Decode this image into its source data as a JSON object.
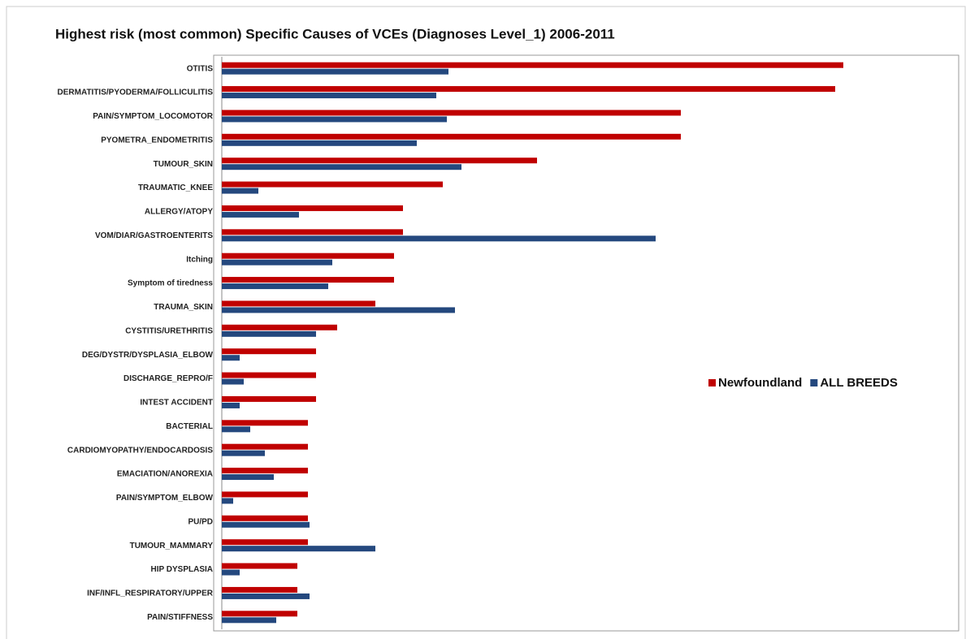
{
  "chart_data": {
    "type": "hbar",
    "title": "Highest risk (most common) Specific Causes of VCEs (Diagnoses Level_1) 2006-2011",
    "categories": [
      "OTITIS",
      "DERMATITIS/PYODERMA/FOLLICULITIS",
      "PAIN/SYMPTOM_LOCOMOTOR",
      "PYOMETRA_ENDOMETRITIS",
      "TUMOUR_SKIN",
      "TRAUMATIC_KNEE",
      "ALLERGY/ATOPY",
      "VOM/DIAR/GASTROENTERITS",
      "Itching",
      "Symptom of tiredness",
      "TRAUMA_SKIN",
      "CYSTITIS/URETHRITIS",
      "DEG/DYSTR/DYSPLASIA_ELBOW",
      "DISCHARGE_REPRO/F",
      "INTEST ACCIDENT",
      "BACTERIAL",
      "CARDIOMYOPATHY/ENDOCARDOSIS",
      "EMACIATION/ANOREXIA",
      "PAIN/SYMPTOM_ELBOW",
      "PU/PD",
      "TUMOUR_MAMMARY",
      "HIP DYSPLASIA",
      "INF/INFL_RESPIRATORY/UPPER",
      "PAIN/STIFFNESS"
    ],
    "series": [
      {
        "name": "Newfoundland",
        "color": "#c00000",
        "values": [
          765,
          755,
          565,
          565,
          388,
          272,
          223,
          223,
          212,
          212,
          189,
          142,
          116,
          116,
          116,
          106,
          106,
          106,
          106,
          106,
          106,
          93,
          93,
          93
        ]
      },
      {
        "name": "ALL BREEDS",
        "color": "#24487e",
        "values": [
          279,
          264,
          277,
          240,
          295,
          45,
          95,
          534,
          136,
          131,
          287,
          116,
          22,
          27,
          22,
          35,
          53,
          64,
          14,
          108,
          189,
          22,
          108,
          67
        ]
      }
    ],
    "xlim": [
      0,
      907
    ],
    "legend": "right"
  }
}
